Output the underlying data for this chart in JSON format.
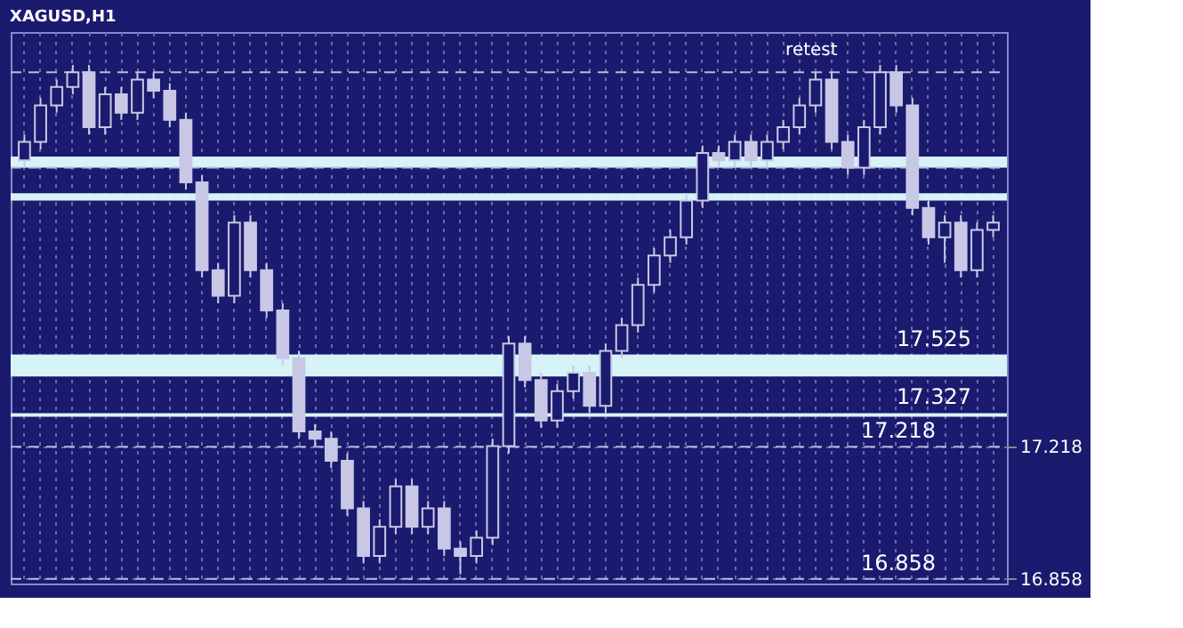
{
  "chart_data": {
    "type": "candlestick",
    "title": "XAGUSD,H1",
    "categories": [
      null,
      null,
      null,
      null,
      null,
      null,
      null,
      null,
      null,
      null,
      null,
      null,
      null,
      null,
      null,
      null,
      null,
      null,
      null,
      null,
      null,
      null,
      null,
      null,
      null,
      null,
      null,
      null,
      null,
      null,
      null,
      null,
      null,
      null,
      null,
      null,
      null,
      null,
      null,
      null,
      null,
      null,
      null,
      null,
      null,
      null,
      null,
      null,
      null,
      null,
      null,
      null,
      null,
      null,
      null,
      null,
      null,
      null,
      null,
      null,
      null
    ],
    "ohlc": [
      [
        18.0,
        18.07,
        17.98,
        18.05
      ],
      [
        18.05,
        18.17,
        18.03,
        18.15
      ],
      [
        18.15,
        18.22,
        18.13,
        18.2
      ],
      [
        18.2,
        18.26,
        18.18,
        18.24
      ],
      [
        18.24,
        18.26,
        18.07,
        18.09
      ],
      [
        18.09,
        18.2,
        18.07,
        18.18
      ],
      [
        18.18,
        18.2,
        18.11,
        18.13
      ],
      [
        18.13,
        18.24,
        18.11,
        18.22
      ],
      [
        18.22,
        18.24,
        18.17,
        18.19
      ],
      [
        18.19,
        18.21,
        18.09,
        18.11
      ],
      [
        18.11,
        18.13,
        17.92,
        17.94
      ],
      [
        17.94,
        17.96,
        17.68,
        17.7
      ],
      [
        17.7,
        17.72,
        17.61,
        17.63
      ],
      [
        17.63,
        17.85,
        17.61,
        17.83
      ],
      [
        17.83,
        17.85,
        17.68,
        17.7
      ],
      [
        17.7,
        17.72,
        17.57,
        17.59
      ],
      [
        17.59,
        17.61,
        17.44,
        17.46
      ],
      [
        17.46,
        17.48,
        17.24,
        17.26
      ],
      [
        17.26,
        17.28,
        17.22,
        17.24
      ],
      [
        17.24,
        17.26,
        17.16,
        17.18
      ],
      [
        17.18,
        17.2,
        17.03,
        17.05
      ],
      [
        17.05,
        17.07,
        16.9,
        16.92
      ],
      [
        16.92,
        17.02,
        16.9,
        17.0
      ],
      [
        17.0,
        17.13,
        16.98,
        17.11
      ],
      [
        17.11,
        17.13,
        16.98,
        17.0
      ],
      [
        17.0,
        17.07,
        16.98,
        17.05
      ],
      [
        17.05,
        17.07,
        16.92,
        16.94
      ],
      [
        16.94,
        16.96,
        16.87,
        16.92
      ],
      [
        16.92,
        16.99,
        16.9,
        16.97
      ],
      [
        16.97,
        17.24,
        16.95,
        17.22
      ],
      [
        17.22,
        17.52,
        17.2,
        17.5
      ],
      [
        17.5,
        17.52,
        17.38,
        17.4
      ],
      [
        17.4,
        17.42,
        17.27,
        17.29
      ],
      [
        17.29,
        17.39,
        17.27,
        17.37
      ],
      [
        17.37,
        17.44,
        17.35,
        17.42
      ],
      [
        17.42,
        17.44,
        17.31,
        17.33
      ],
      [
        17.33,
        17.5,
        17.31,
        17.48
      ],
      [
        17.48,
        17.57,
        17.46,
        17.55
      ],
      [
        17.55,
        17.68,
        17.53,
        17.66
      ],
      [
        17.66,
        17.76,
        17.64,
        17.74
      ],
      [
        17.74,
        17.81,
        17.72,
        17.79
      ],
      [
        17.79,
        17.91,
        17.77,
        17.89
      ],
      [
        17.89,
        18.04,
        17.87,
        18.02
      ],
      [
        18.02,
        18.04,
        17.98,
        18.0
      ],
      [
        18.0,
        18.07,
        17.98,
        18.05
      ],
      [
        18.05,
        18.07,
        17.98,
        18.0
      ],
      [
        18.0,
        18.07,
        17.98,
        18.05
      ],
      [
        18.05,
        18.11,
        18.03,
        18.09
      ],
      [
        18.09,
        18.17,
        18.07,
        18.15
      ],
      [
        18.15,
        18.24,
        18.13,
        18.22
      ],
      [
        18.22,
        18.24,
        18.03,
        18.05
      ],
      [
        18.05,
        18.07,
        17.96,
        17.98
      ],
      [
        17.98,
        18.11,
        17.96,
        18.09
      ],
      [
        18.09,
        18.26,
        18.07,
        18.24
      ],
      [
        18.24,
        18.26,
        18.13,
        18.15
      ],
      [
        18.15,
        18.17,
        17.85,
        17.87
      ],
      [
        17.87,
        17.89,
        17.77,
        17.79
      ],
      [
        17.79,
        17.85,
        17.72,
        17.83
      ],
      [
        17.83,
        17.85,
        17.68,
        17.7
      ],
      [
        17.7,
        17.83,
        17.68,
        17.81
      ],
      [
        17.81,
        17.85,
        17.79,
        17.83
      ]
    ],
    "ylim": [
      16.845,
      18.35
    ],
    "yticks": [
      16.858,
      17.218
    ],
    "tick_labels": "y",
    "grid": true,
    "ref_lines": [
      {
        "axis": "y",
        "value": 17.218,
        "label": "17.218",
        "line_style": "dashed",
        "color": "#b8b8e0"
      },
      {
        "axis": "y",
        "value": 16.858,
        "label": "16.858",
        "line_style": "dashed",
        "color": "#b8b8e0"
      },
      {
        "axis": "y",
        "value": 18.24,
        "label": null,
        "line_style": "dashed",
        "color": "#b8b8e0"
      },
      {
        "axis": "y",
        "value": 17.98,
        "label": null,
        "line_style": "dashed",
        "color": "#b8b8e0"
      }
    ],
    "bands": [
      {
        "axis": "y",
        "from": 17.98,
        "to": 18.01,
        "label": null,
        "color": "#e0ffff"
      },
      {
        "axis": "y",
        "from": 17.89,
        "to": 17.91,
        "label": null,
        "color": "#e0ffff"
      },
      {
        "axis": "y",
        "from": 17.41,
        "to": 17.47,
        "label": "17.525",
        "color": "#e0ffff"
      },
      {
        "axis": "y",
        "from": 17.3,
        "to": 17.31,
        "label": "17.327",
        "color": "#e0ffff"
      }
    ],
    "annotations": [
      "retest"
    ]
  }
}
